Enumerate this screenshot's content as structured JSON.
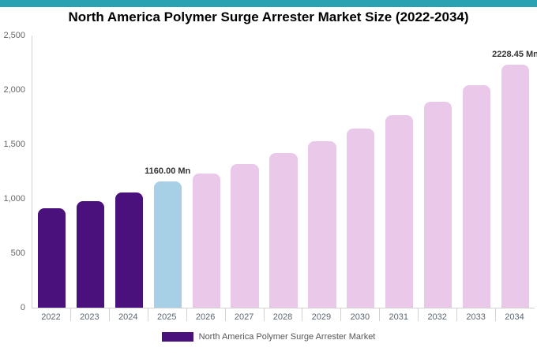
{
  "accent": {
    "top_bar_color": "#2aa2b2"
  },
  "chart_data": {
    "type": "bar",
    "title": "North America Polymer Surge Arrester Market Size (2022-2034)",
    "categories": [
      "2022",
      "2023",
      "2024",
      "2025",
      "2026",
      "2027",
      "2028",
      "2029",
      "2030",
      "2031",
      "2032",
      "2033",
      "2034"
    ],
    "values": [
      910,
      980,
      1060,
      1160,
      1235,
      1320,
      1420,
      1530,
      1645,
      1765,
      1895,
      2045,
      2228.45
    ],
    "series_name": "North America Polymer Surge Arrester Market",
    "xlabel": "",
    "ylabel": "",
    "ylim": [
      0,
      2500
    ],
    "grid": false,
    "legend_position": "bottom",
    "yticks": [
      {
        "value": 0,
        "label": "0"
      },
      {
        "value": 500,
        "label": "500"
      },
      {
        "value": 1000,
        "label": "1,000"
      },
      {
        "value": 1500,
        "label": "1,500"
      },
      {
        "value": 2000,
        "label": "2,000"
      },
      {
        "value": 2500,
        "label": "2,500"
      }
    ],
    "bar_colors": [
      "#4a107c",
      "#4a107c",
      "#4a107c",
      "#a7cfe6",
      "#e9c8e9",
      "#e9c8e9",
      "#e9c8e9",
      "#e9c8e9",
      "#e9c8e9",
      "#e9c8e9",
      "#e9c8e9",
      "#e9c8e9",
      "#e9c8e9"
    ],
    "data_labels": [
      {
        "index": 3,
        "text": "1160.00 Mn"
      },
      {
        "index": 12,
        "text": "2228.45 Mn"
      }
    ],
    "legend": {
      "label": "North America Polymer Surge Arrester Market",
      "swatch_color": "#4a107c"
    }
  }
}
